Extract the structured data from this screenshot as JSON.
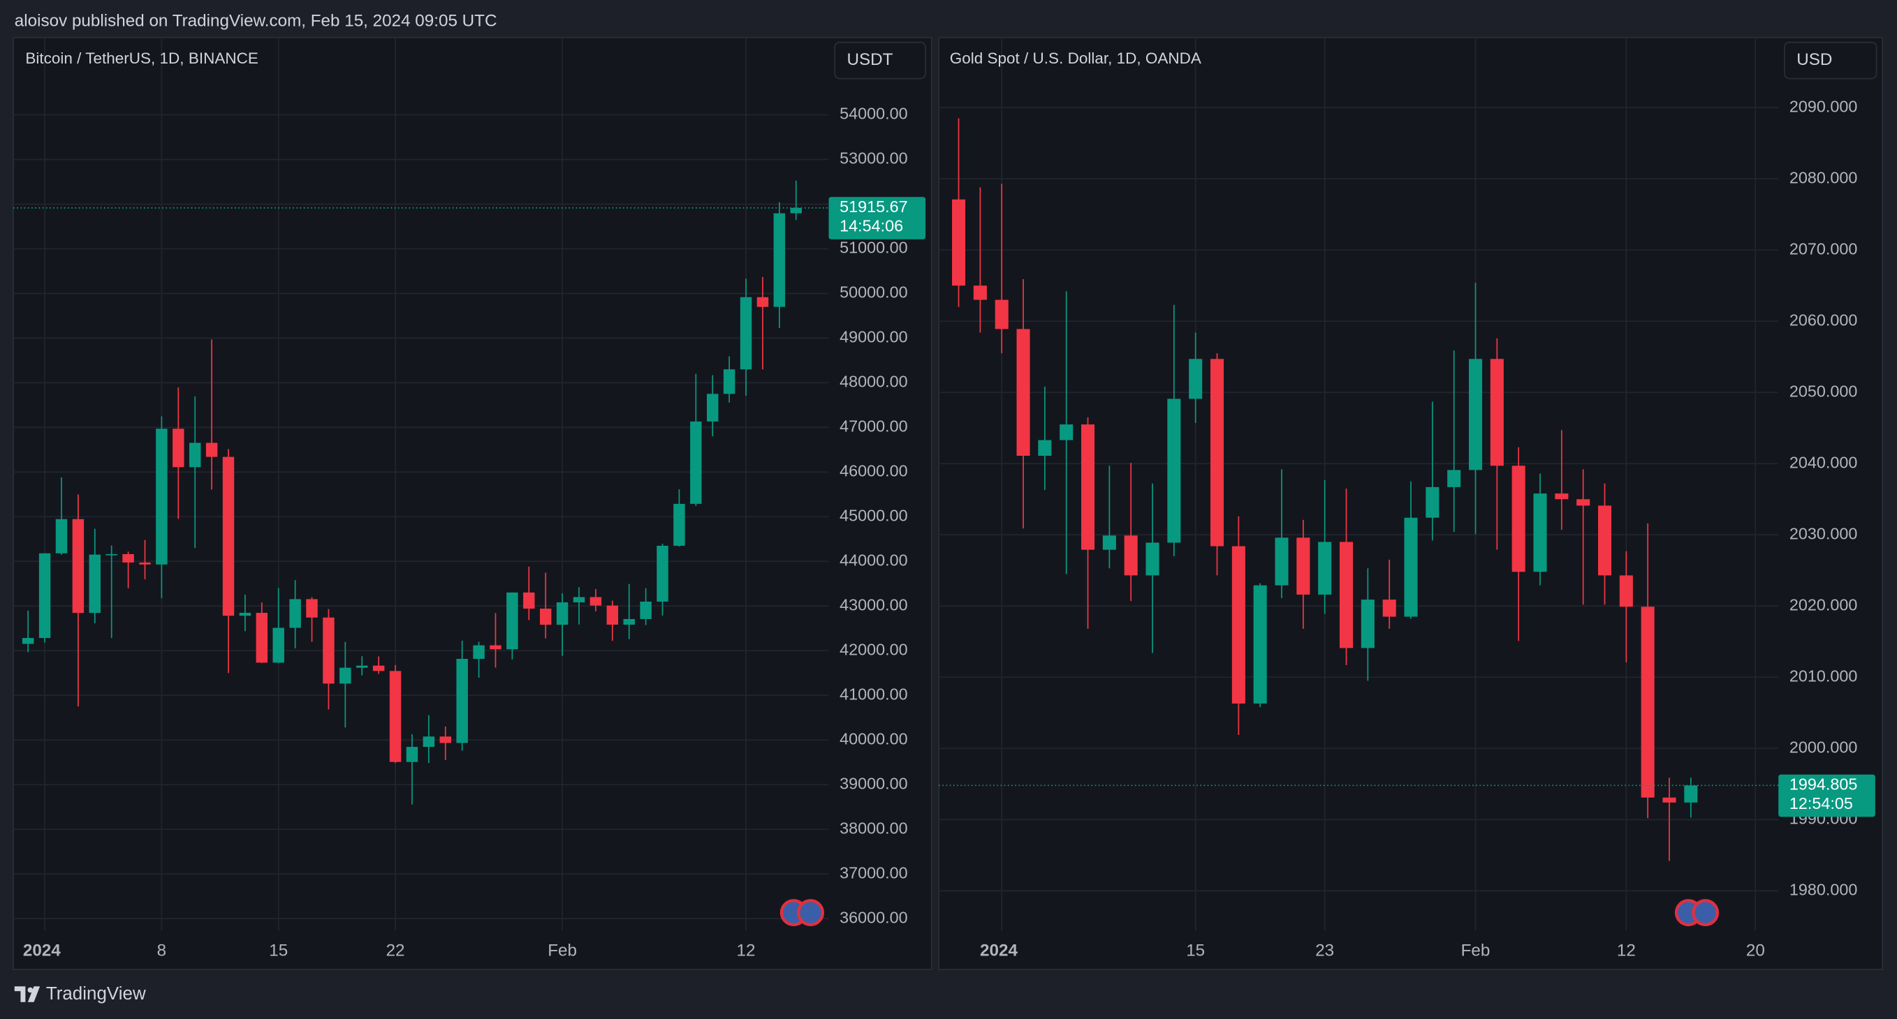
{
  "header": "aloisov published on TradingView.com, Feb 15, 2024 09:05 UTC",
  "footer": "TradingView",
  "chart_data": [
    {
      "type": "candlestick",
      "title": "Bitcoin / TetherUS, 1D, BINANCE",
      "currency": "USDT",
      "countdown": "14:54:06",
      "up_color": "#089981",
      "down_color": "#f23645",
      "grid": true,
      "categories": [
        null,
        "2024",
        null,
        null,
        null,
        null,
        null,
        null,
        "8",
        null,
        null,
        null,
        null,
        null,
        null,
        "15",
        null,
        null,
        null,
        null,
        null,
        null,
        "22",
        null,
        null,
        null,
        null,
        null,
        null,
        null,
        null,
        null,
        "Feb",
        null,
        null,
        null,
        null,
        null,
        null,
        null,
        null,
        null,
        null,
        "12",
        null,
        null,
        null
      ],
      "open": [
        42152,
        42284,
        44180,
        44946,
        42845,
        44151,
        44162,
        43974,
        43930,
        46970,
        46110,
        46654,
        46340,
        42782,
        42847,
        41732,
        42511,
        43154,
        42742,
        41262,
        41618,
        41665,
        41545,
        39507,
        39845,
        40077,
        39933,
        41816,
        42120,
        42031,
        43302,
        42941,
        42580,
        43082,
        43200,
        43011,
        42582,
        42708,
        43098,
        44349,
        45288,
        47132,
        47751,
        48300,
        49917,
        49699,
        51795
      ],
      "high": [
        42899,
        44185,
        45879,
        45500,
        44729,
        44357,
        44218,
        44480,
        47248,
        47894,
        47695,
        48969,
        46516,
        43257,
        43079,
        43400,
        43578,
        43198,
        42931,
        42195,
        41876,
        41870,
        41680,
        40129,
        40555,
        40300,
        42225,
        42200,
        42842,
        43305,
        43882,
        43745,
        43285,
        43422,
        43380,
        43119,
        43494,
        43399,
        44396,
        45614,
        48200,
        48170,
        48592,
        50334,
        50368,
        52043,
        52527
      ],
      "low": [
        41965,
        42181,
        44148,
        40750,
        42613,
        42284,
        43397,
        43600,
        43175,
        44950,
        44300,
        45606,
        41500,
        42436,
        41720,
        41718,
        42050,
        42200,
        40683,
        40280,
        41446,
        41480,
        39484,
        38555,
        39484,
        39550,
        39761,
        41394,
        41620,
        41804,
        42683,
        42276,
        41884,
        42585,
        42880,
        42222,
        42258,
        42574,
        42788,
        44331,
        45242,
        46800,
        47557,
        47710,
        48300,
        49225,
        51644
      ],
      "close": [
        42284,
        44180,
        44946,
        42845,
        44151,
        44162,
        43974,
        43930,
        46970,
        46110,
        46654,
        46340,
        42782,
        42847,
        41732,
        42511,
        43154,
        42742,
        41262,
        41618,
        41665,
        41545,
        39507,
        39845,
        40077,
        39933,
        41816,
        42120,
        42031,
        43302,
        42941,
        42580,
        43082,
        43200,
        43011,
        42582,
        42708,
        43098,
        44349,
        45288,
        47132,
        47751,
        48300,
        49917,
        49699,
        51795,
        51915.67
      ],
      "ylim": [
        35700,
        55700
      ],
      "yticks": [
        {
          "value": 36000,
          "label": "36000.00"
        },
        {
          "value": 37000,
          "label": "37000.00"
        },
        {
          "value": 38000,
          "label": "38000.00"
        },
        {
          "value": 39000,
          "label": "39000.00"
        },
        {
          "value": 40000,
          "label": "40000.00"
        },
        {
          "value": 41000,
          "label": "41000.00"
        },
        {
          "value": 42000,
          "label": "42000.00"
        },
        {
          "value": 43000,
          "label": "43000.00"
        },
        {
          "value": 44000,
          "label": "44000.00"
        },
        {
          "value": 45000,
          "label": "45000.00"
        },
        {
          "value": 46000,
          "label": "46000.00"
        },
        {
          "value": 47000,
          "label": "47000.00"
        },
        {
          "value": 48000,
          "label": "48000.00"
        },
        {
          "value": 49000,
          "label": "49000.00"
        },
        {
          "value": 50000,
          "label": "50000.00"
        },
        {
          "value": 51000,
          "label": "51000.00"
        },
        {
          "value": 52000,
          "label": "52000.00"
        },
        {
          "value": 53000,
          "label": "53000.00"
        },
        {
          "value": 54000,
          "label": "54000.00"
        }
      ]
    },
    {
      "type": "candlestick",
      "title": "Gold Spot / U.S. Dollar, 1D, OANDA",
      "currency": "USD",
      "countdown": "12:54:05",
      "up_color": "#089981",
      "down_color": "#f23645",
      "grid": true,
      "categories": [
        null,
        null,
        "2024",
        null,
        null,
        null,
        null,
        null,
        null,
        null,
        null,
        "15",
        null,
        null,
        null,
        null,
        null,
        "23",
        null,
        null,
        null,
        null,
        null,
        null,
        "Feb",
        null,
        null,
        null,
        null,
        null,
        null,
        "12",
        null,
        null,
        null,
        null,
        null,
        "20"
      ],
      "open": [
        2077.1,
        2065.0,
        2063.0,
        2058.9,
        2041.1,
        2043.3,
        2045.5,
        2027.9,
        2029.9,
        2024.3,
        2028.9,
        2049.1,
        2054.7,
        2028.4,
        2006.3,
        2022.9,
        2029.6,
        2021.6,
        2029.0,
        2014.1,
        2020.9,
        2018.5,
        2032.4,
        2036.7,
        2039.1,
        2054.7,
        2039.7,
        2024.8,
        2035.8,
        2035.0,
        2034.1,
        2024.3,
        2019.9,
        1993.1,
        1992.4,
        null,
        null,
        null
      ],
      "high": [
        2088.5,
        2078.8,
        2079.3,
        2065.9,
        2050.8,
        2064.2,
        2046.5,
        2039.7,
        2040.1,
        2037.2,
        2062.3,
        2058.4,
        2055.5,
        2032.6,
        2023.2,
        2039.2,
        2032.1,
        2037.7,
        2036.5,
        2025.3,
        2026.5,
        2037.5,
        2048.7,
        2055.9,
        2065.4,
        2057.6,
        2042.3,
        2038.6,
        2044.7,
        2039.2,
        2037.2,
        2027.7,
        2031.6,
        1995.9,
        1995.9,
        null,
        null,
        null
      ],
      "low": [
        2062.0,
        2058.4,
        2055.5,
        2030.9,
        2036.3,
        2024.5,
        2016.8,
        2025.3,
        2020.7,
        2013.4,
        2027.0,
        2045.7,
        2024.3,
        2001.9,
        2005.8,
        2021.1,
        2016.8,
        2018.9,
        2011.7,
        2009.5,
        2016.8,
        2018.2,
        2029.2,
        2030.4,
        2030.1,
        2027.9,
        2015.1,
        2022.9,
        2030.7,
        2020.2,
        2020.2,
        2012.1,
        1990.2,
        1984.2,
        1990.3,
        null,
        null,
        null
      ],
      "close": [
        2065.0,
        2063.0,
        2058.9,
        2041.1,
        2043.3,
        2045.5,
        2027.9,
        2029.9,
        2024.3,
        2028.9,
        2049.1,
        2054.7,
        2028.4,
        2006.3,
        2022.9,
        2029.6,
        2021.6,
        2029.0,
        2014.1,
        2020.9,
        2018.5,
        2032.4,
        2036.7,
        2039.1,
        2054.7,
        2039.7,
        2024.8,
        2035.8,
        2035.0,
        2034.1,
        2024.3,
        2019.9,
        1993.1,
        1992.4,
        1994.805,
        null,
        null,
        null
      ],
      "ylim": [
        1974,
        2100
      ],
      "yticks": [
        {
          "value": 1980,
          "label": "1980.000"
        },
        {
          "value": 1990,
          "label": "1990.000"
        },
        {
          "value": 2000,
          "label": "2000.000"
        },
        {
          "value": 2010,
          "label": "2010.000"
        },
        {
          "value": 2020,
          "label": "2020.000"
        },
        {
          "value": 2030,
          "label": "2030.000"
        },
        {
          "value": 2040,
          "label": "2040.000"
        },
        {
          "value": 2050,
          "label": "2050.000"
        },
        {
          "value": 2060,
          "label": "2060.000"
        },
        {
          "value": 2070,
          "label": "2070.000"
        },
        {
          "value": 2080,
          "label": "2080.000"
        },
        {
          "value": 2090,
          "label": "2090.000"
        }
      ]
    }
  ]
}
